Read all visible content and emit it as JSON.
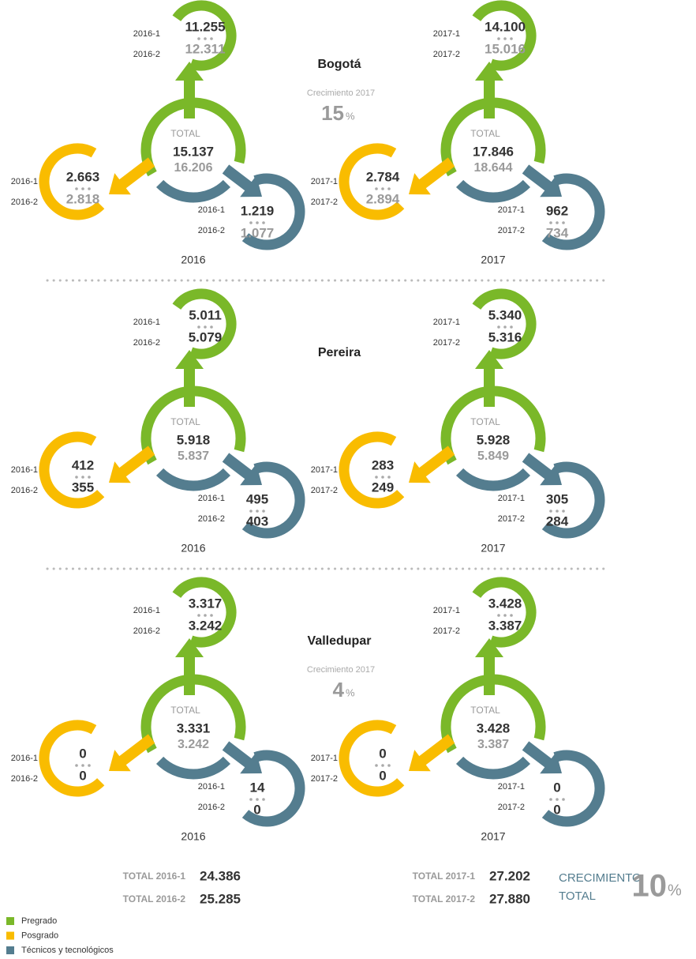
{
  "cities": [
    {
      "name": "Bogotá",
      "growth": {
        "label": "Crecimiento 2017",
        "value": "15",
        "unit": "%"
      },
      "muted_second": true,
      "years": [
        {
          "year": "2016",
          "total_label": "TOTAL",
          "total": [
            "15.137",
            "16.206"
          ],
          "branches": [
            {
              "periods": [
                "2016-1",
                "2016-2"
              ],
              "values": [
                "11.255",
                "12.311"
              ]
            },
            {
              "periods": [
                "2016-1",
                "2016-2"
              ],
              "values": [
                "2.663",
                "2.818"
              ]
            },
            {
              "periods": [
                "2016-1",
                "2016-2"
              ],
              "values": [
                "1.219",
                "1.077"
              ]
            }
          ]
        },
        {
          "year": "2017",
          "total_label": "TOTAL",
          "total": [
            "17.846",
            "18.644"
          ],
          "branches": [
            {
              "periods": [
                "2017-1",
                "2017-2"
              ],
              "values": [
                "14.100",
                "15.016"
              ]
            },
            {
              "periods": [
                "2017-1",
                "2017-2"
              ],
              "values": [
                "2.784",
                "2.894"
              ]
            },
            {
              "periods": [
                "2017-1",
                "2017-2"
              ],
              "values": [
                "962",
                "734"
              ]
            }
          ]
        }
      ]
    },
    {
      "name": "Pereira",
      "muted_second": false,
      "years": [
        {
          "year": "2016",
          "total_label": "TOTAL",
          "total": [
            "5.918",
            "5.837"
          ],
          "branches": [
            {
              "periods": [
                "2016-1",
                "2016-2"
              ],
              "values": [
                "5.011",
                "5.079"
              ]
            },
            {
              "periods": [
                "2016-1",
                "2016-2"
              ],
              "values": [
                "412",
                "355"
              ]
            },
            {
              "periods": [
                "2016-1",
                "2016-2"
              ],
              "values": [
                "495",
                "403"
              ]
            }
          ]
        },
        {
          "year": "2017",
          "total_label": "TOTAL",
          "total": [
            "5.928",
            "5.849"
          ],
          "branches": [
            {
              "periods": [
                "2017-1",
                "2017-2"
              ],
              "values": [
                "5.340",
                "5.316"
              ]
            },
            {
              "periods": [
                "2017-1",
                "2017-2"
              ],
              "values": [
                "283",
                "249"
              ]
            },
            {
              "periods": [
                "2017-1",
                "2017-2"
              ],
              "values": [
                "305",
                "284"
              ]
            }
          ]
        }
      ]
    },
    {
      "name": "Valledupar",
      "growth": {
        "label": "Crecimiento 2017",
        "value": "4",
        "unit": "%"
      },
      "muted_second": false,
      "years": [
        {
          "year": "2016",
          "total_label": "TOTAL",
          "total": [
            "3.331",
            "3.242"
          ],
          "branches": [
            {
              "periods": [
                "2016-1",
                "2016-2"
              ],
              "values": [
                "3.317",
                "3.242"
              ]
            },
            {
              "periods": [
                "2016-1",
                "2016-2"
              ],
              "values": [
                "0",
                "0"
              ]
            },
            {
              "periods": [
                "2016-1",
                "2016-2"
              ],
              "values": [
                "14",
                "0"
              ]
            }
          ]
        },
        {
          "year": "2017",
          "total_label": "TOTAL",
          "total": [
            "3.428",
            "3.387"
          ],
          "branches": [
            {
              "periods": [
                "2017-1",
                "2017-2"
              ],
              "values": [
                "3.428",
                "3.387"
              ]
            },
            {
              "periods": [
                "2017-1",
                "2017-2"
              ],
              "values": [
                "0",
                "0"
              ]
            },
            {
              "periods": [
                "2017-1",
                "2017-2"
              ],
              "values": [
                "0",
                "0"
              ]
            }
          ]
        }
      ]
    }
  ],
  "totals": [
    {
      "label": "TOTAL 2016-1",
      "value": "24.386"
    },
    {
      "label": "TOTAL 2016-2",
      "value": "25.285"
    },
    {
      "label": "TOTAL 2017-1",
      "value": "27.202"
    },
    {
      "label": "TOTAL 2017-2",
      "value": "27.880"
    }
  ],
  "growth_total": {
    "label_lines": [
      "CRECIMIENTO",
      "TOTAL"
    ],
    "value": "10",
    "unit": "%"
  },
  "legend": [
    {
      "name": "Pregrado",
      "color": "#7ab829"
    },
    {
      "name": "Posgrado",
      "color": "#f9bc00"
    },
    {
      "name": "Técnicos y tecnológicos",
      "color": "#547d8f"
    }
  ]
}
